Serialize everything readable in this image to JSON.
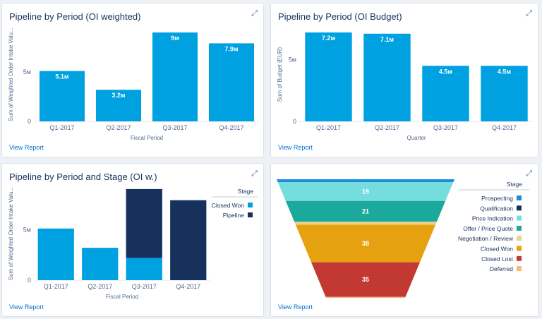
{
  "common": {
    "view_report_label": "View Report",
    "expand_glyph": "⤢"
  },
  "colors": {
    "bar": "#00a1e0",
    "dark": "#16325c",
    "axis": "#54698d",
    "grid": "#e4e7ec"
  },
  "chart_data": [
    {
      "type": "bar",
      "title": "Pipeline by Period (OI weighted)",
      "xlabel": "Fiscal Period",
      "ylabel": "Sum of Weighted Order Intake Valu...",
      "categories": [
        "Q1-2017",
        "Q2-2017",
        "Q3-2017",
        "Q4-2017"
      ],
      "values": [
        5.1,
        3.2,
        9,
        7.9
      ],
      "value_labels": [
        "5.1м",
        "3.2м",
        "9м",
        "7.9м"
      ],
      "yticks": [
        0,
        5
      ],
      "ytick_labels": [
        "0",
        "5м"
      ],
      "ylim": [
        0,
        9.5
      ],
      "unit": "M"
    },
    {
      "type": "bar",
      "title": "Pipeline by Period (OI Budget)",
      "xlabel": "Quarter",
      "ylabel": "Sum of Budget (EUR)",
      "categories": [
        "Q1-2017",
        "Q2-2017",
        "Q3-2017",
        "Q4-2017"
      ],
      "values": [
        7.2,
        7.1,
        4.5,
        4.5
      ],
      "value_labels": [
        "7.2м",
        "7.1м",
        "4.5м",
        "4.5м"
      ],
      "yticks": [
        0,
        5
      ],
      "ytick_labels": [
        "0",
        "5м"
      ],
      "ylim": [
        0,
        7.6
      ],
      "unit": "M"
    },
    {
      "type": "bar",
      "stacked": true,
      "title": "Pipeline by Period and Stage (OI w.)",
      "xlabel": "Fiscal Period",
      "ylabel": "Sum of Weighted Order Intake Valu...",
      "categories": [
        "Q1-2017",
        "Q2-2017",
        "Q3-2017",
        "Q4-2017"
      ],
      "series": [
        {
          "name": "Closed Won",
          "values": [
            5.1,
            3.2,
            2.2,
            0
          ],
          "color": "#00a1e0"
        },
        {
          "name": "Pipeline",
          "values": [
            0,
            0,
            6.8,
            7.9
          ],
          "color": "#16325c"
        }
      ],
      "legend_title": "Stage",
      "legend_position": "right",
      "yticks": [
        0,
        5
      ],
      "ytick_labels": [
        "0",
        "5м"
      ],
      "ylim": [
        0,
        9.2
      ],
      "unit": "M"
    },
    {
      "type": "funnel",
      "legend_title": "Stage",
      "legend_position": "right",
      "segments": [
        {
          "name": "Prospecting",
          "value": 3,
          "color": "#1b8fd6",
          "label": ""
        },
        {
          "name": "Qualification",
          "value": 0,
          "color": "#16325c",
          "label": ""
        },
        {
          "name": "Price Indication",
          "value": 19,
          "color": "#76ddde",
          "label": "19"
        },
        {
          "name": "Offer / Price Quote",
          "value": 21,
          "color": "#1aa99a",
          "label": "21"
        },
        {
          "name": "Negotiation / Review",
          "value": 3,
          "color": "#ead38c",
          "label": ""
        },
        {
          "name": "Closed Won",
          "value": 38,
          "color": "#e6a110",
          "label": "38"
        },
        {
          "name": "Closed Lost",
          "value": 35,
          "color": "#c23934",
          "label": "35"
        },
        {
          "name": "Deferred",
          "value": 1,
          "color": "#f6b97a",
          "label": ""
        }
      ]
    }
  ]
}
